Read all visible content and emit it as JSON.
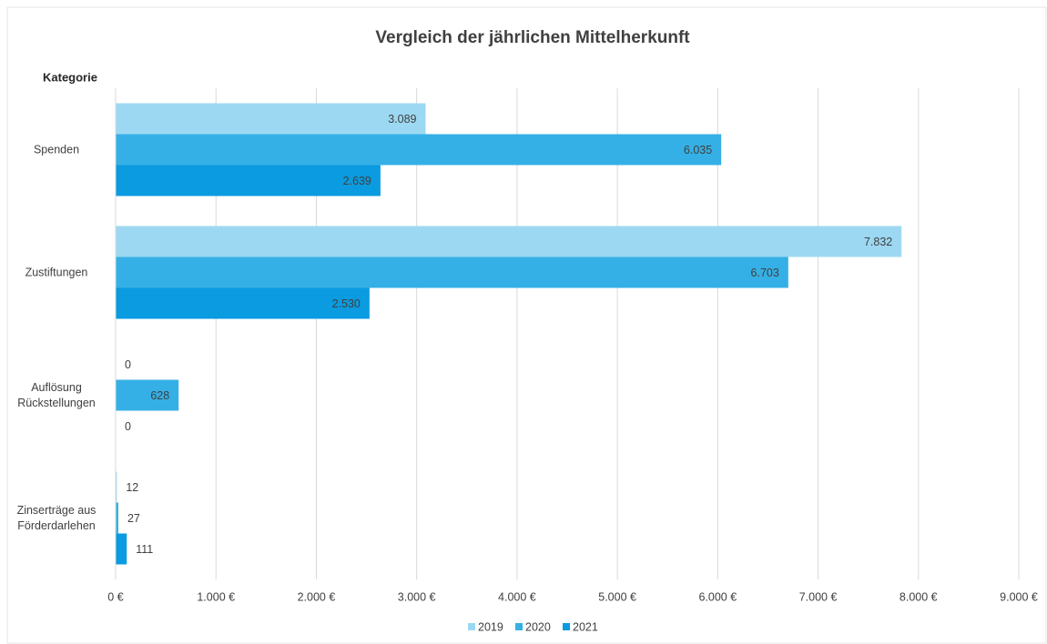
{
  "chart_data": {
    "type": "hbar",
    "title": "Vergleich der jährlichen Mittelherkunft",
    "y_axis_title": "Kategorie",
    "categories": [
      "Spenden",
      "Zustiftungen",
      "Auflösung Rückstellungen",
      "Zinserträge aus Förderdarlehen"
    ],
    "series": [
      {
        "name": "2019",
        "color": "#9dd8f2",
        "values": [
          3089,
          7832,
          0,
          12
        ],
        "value_labels": [
          "3.089",
          "7.832",
          "0",
          "12"
        ]
      },
      {
        "name": "2020",
        "color": "#35b0e6",
        "values": [
          6035,
          6703,
          628,
          27
        ],
        "value_labels": [
          "6.035",
          "6.703",
          "628",
          "27"
        ]
      },
      {
        "name": "2021",
        "color": "#0a9be0",
        "values": [
          2639,
          2530,
          0,
          111
        ],
        "value_labels": [
          "2.639",
          "2.530",
          "0",
          "111"
        ]
      }
    ],
    "xlim": [
      0,
      9000
    ],
    "xticks": [
      {
        "value": 0,
        "label": "0 €"
      },
      {
        "value": 1000,
        "label": "1.000 €"
      },
      {
        "value": 2000,
        "label": "2.000 €"
      },
      {
        "value": 3000,
        "label": "3.000 €"
      },
      {
        "value": 4000,
        "label": "4.000 €"
      },
      {
        "value": 5000,
        "label": "5.000 €"
      },
      {
        "value": 6000,
        "label": "6.000 €"
      },
      {
        "value": 7000,
        "label": "7.000 €"
      },
      {
        "value": 8000,
        "label": "8.000 €"
      },
      {
        "value": 9000,
        "label": "9.000 €"
      }
    ],
    "grid": true,
    "legend": "bottom"
  }
}
